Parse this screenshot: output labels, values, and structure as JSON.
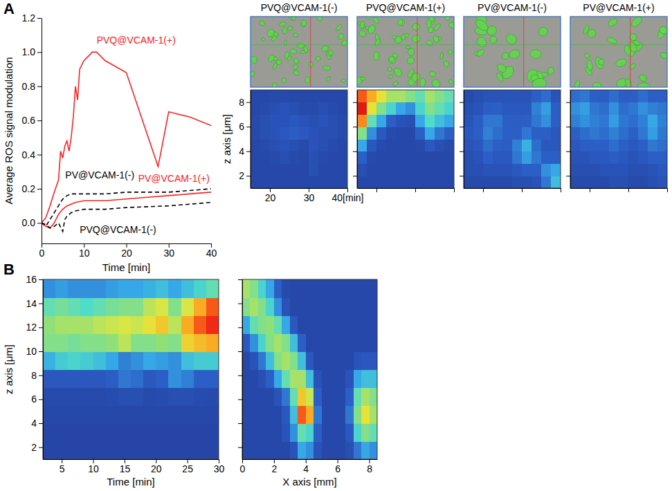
{
  "chart_data": [
    {
      "type": "line",
      "panel": "A",
      "x_label": "Time [min]",
      "y_label": "Average ROS signal modulation",
      "xlim": [
        0,
        40
      ],
      "ylim": [
        -0.12,
        1.2
      ],
      "xticks": [
        0,
        10,
        20,
        30,
        40
      ],
      "yticks": [
        {
          "value": 0,
          "label": "0.0"
        },
        0.2,
        0.4,
        0.6,
        0.8,
        {
          "value": 1,
          "label": "1.0"
        },
        1.2
      ],
      "series": [
        {
          "name": "PVQ@VCAM-1(+)",
          "color": "#ff2020",
          "line_style": "solid",
          "x": [
            0,
            1,
            2,
            3,
            4,
            4.5,
            5,
            5.5,
            6,
            6.5,
            7,
            7.5,
            8,
            8.5,
            9,
            10,
            12,
            13,
            15,
            20,
            27.5,
            30,
            35,
            40
          ],
          "values": [
            0,
            0.03,
            0.1,
            0.18,
            0.25,
            0.42,
            0.38,
            0.45,
            0.48,
            0.42,
            0.5,
            0.62,
            0.8,
            0.72,
            0.9,
            0.95,
            1,
            1,
            0.95,
            0.88,
            0.33,
            0.65,
            0.62,
            0.57
          ]
        },
        {
          "name": "PV@VCAM-1(-)",
          "color": "#000000",
          "line_style": "dashed",
          "x": [
            0,
            1,
            2,
            3,
            4,
            5,
            6,
            7,
            10,
            15,
            20,
            30,
            40
          ],
          "values": [
            0,
            -0.02,
            0.02,
            0.06,
            0.1,
            0.14,
            0.16,
            0.17,
            0.17,
            0.17,
            0.18,
            0.18,
            0.2
          ]
        },
        {
          "name": "PV@VCAM-1(+)",
          "color": "#ff2020",
          "line_style": "solid",
          "x": [
            0,
            1,
            2,
            3,
            4,
            5,
            6,
            8,
            10,
            15,
            20,
            25,
            30,
            35,
            40
          ],
          "values": [
            0,
            -0.02,
            -0.03,
            0,
            0.05,
            0.08,
            0.1,
            0.12,
            0.13,
            0.13,
            0.14,
            0.15,
            0.16,
            0.17,
            0.18
          ]
        },
        {
          "name": "PVQ@VCAM-1(-)",
          "color": "#000000",
          "line_style": "dashed",
          "x": [
            0,
            1,
            2,
            3,
            4,
            5,
            5.5,
            6,
            7,
            8,
            10,
            15,
            20,
            30,
            40
          ],
          "values": [
            0,
            -0.01,
            -0.03,
            -0.02,
            0,
            -0.05,
            0.02,
            0.04,
            0.06,
            0.07,
            0.08,
            0.08,
            0.09,
            0.1,
            0.12
          ]
        }
      ]
    },
    {
      "type": "heatmap",
      "title": "PVQ@VCAM-1(-)",
      "y_label": "z axis [μm]",
      "xlim": [
        15,
        40
      ],
      "ylim": [
        1,
        9
      ],
      "xticks": [
        20,
        30,
        {
          "value": 40,
          "label": "40[min]"
        }
      ],
      "yticks": [
        2,
        4,
        6,
        8
      ],
      "vlim": [
        0,
        1
      ],
      "x": [
        16.25,
        18.75,
        21.25,
        23.75,
        26.25,
        28.75,
        31.25,
        33.75,
        36.25,
        38.75
      ],
      "y": [
        1.5,
        2.5,
        3.5,
        4.5,
        5.5,
        6.5,
        7.5,
        8.5
      ],
      "cells": [
        [
          0.05,
          0.05,
          0.05,
          0.05,
          0.05,
          0.05,
          0.05,
          0.05,
          0.05,
          0.05
        ],
        [
          0.05,
          0.05,
          0.05,
          0.05,
          0.05,
          0.05,
          0.08,
          0.05,
          0.05,
          0.05
        ],
        [
          0.05,
          0.05,
          0.06,
          0.08,
          0.06,
          0.05,
          0.08,
          0.06,
          0.05,
          0.05
        ],
        [
          0.05,
          0.06,
          0.08,
          0.1,
          0.08,
          0.06,
          0.1,
          0.08,
          0.06,
          0.05
        ],
        [
          0.06,
          0.08,
          0.1,
          0.12,
          0.14,
          0.12,
          0.1,
          0.08,
          0.08,
          0.06
        ],
        [
          0.06,
          0.08,
          0.1,
          0.1,
          0.12,
          0.1,
          0.08,
          0.1,
          0.08,
          0.06
        ],
        [
          0.05,
          0.06,
          0.08,
          0.1,
          0.08,
          0.06,
          0.06,
          0.08,
          0.06,
          0.05
        ],
        [
          0.05,
          0.05,
          0.06,
          0.06,
          0.05,
          0.05,
          0.05,
          0.05,
          0.05,
          0.05
        ]
      ]
    },
    {
      "type": "heatmap",
      "title": "PVQ@VCAM-1(+)",
      "tick_labels": false,
      "xlim": [
        15,
        40
      ],
      "ylim": [
        1,
        9
      ],
      "xticks": [
        20,
        30,
        40
      ],
      "yticks": [
        2,
        4,
        6,
        8
      ],
      "vlim": [
        0,
        1
      ],
      "x": [
        16.25,
        18.75,
        21.25,
        23.75,
        26.25,
        28.75,
        31.25,
        33.75,
        36.25,
        38.75
      ],
      "y": [
        1.5,
        2.5,
        3.5,
        4.5,
        5.5,
        6.5,
        7.5,
        8.5
      ],
      "cells": [
        [
          0.05,
          0.05,
          0.05,
          0.05,
          0.05,
          0.05,
          0.05,
          0.05,
          0.05,
          0.05
        ],
        [
          0.08,
          0.05,
          0.05,
          0.05,
          0.05,
          0.05,
          0.05,
          0.05,
          0.05,
          0.05
        ],
        [
          0.15,
          0.06,
          0.05,
          0.05,
          0.05,
          0.05,
          0.05,
          0.05,
          0.05,
          0.05
        ],
        [
          0.3,
          0.12,
          0.06,
          0.05,
          0.05,
          0.05,
          0.06,
          0.12,
          0.08,
          0.06
        ],
        [
          0.5,
          0.25,
          0.12,
          0.06,
          0.05,
          0.05,
          0.15,
          0.3,
          0.2,
          0.15
        ],
        [
          0.8,
          0.45,
          0.3,
          0.15,
          0.1,
          0.08,
          0.3,
          0.42,
          0.35,
          0.3
        ],
        [
          0.95,
          0.65,
          0.5,
          0.4,
          0.3,
          0.25,
          0.4,
          0.5,
          0.45,
          0.4
        ],
        [
          0.85,
          0.75,
          0.65,
          0.55,
          0.55,
          0.5,
          0.45,
          0.55,
          0.5,
          0.45
        ]
      ]
    },
    {
      "type": "heatmap",
      "title": "PV@VCAM-1(-)",
      "tick_labels": false,
      "xlim": [
        15,
        40
      ],
      "ylim": [
        1,
        9
      ],
      "xticks": [
        20,
        30,
        40
      ],
      "yticks": [
        2,
        4,
        6,
        8
      ],
      "vlim": [
        0,
        1
      ],
      "x": [
        16.25,
        18.75,
        21.25,
        23.75,
        26.25,
        28.75,
        31.25,
        33.75,
        36.25,
        38.75
      ],
      "y": [
        1.5,
        2.5,
        3.5,
        4.5,
        5.5,
        6.5,
        7.5,
        8.5
      ],
      "cells": [
        [
          0.06,
          0.06,
          0.06,
          0.06,
          0.06,
          0.08,
          0.08,
          0.1,
          0.2,
          0.35
        ],
        [
          0.08,
          0.08,
          0.1,
          0.1,
          0.1,
          0.12,
          0.15,
          0.15,
          0.25,
          0.3
        ],
        [
          0.08,
          0.1,
          0.15,
          0.12,
          0.12,
          0.2,
          0.28,
          0.2,
          0.15,
          0.15
        ],
        [
          0.1,
          0.12,
          0.18,
          0.15,
          0.14,
          0.22,
          0.32,
          0.18,
          0.12,
          0.12
        ],
        [
          0.12,
          0.15,
          0.22,
          0.18,
          0.15,
          0.15,
          0.2,
          0.15,
          0.15,
          0.12
        ],
        [
          0.1,
          0.14,
          0.2,
          0.2,
          0.15,
          0.14,
          0.15,
          0.2,
          0.25,
          0.15
        ],
        [
          0.08,
          0.1,
          0.14,
          0.15,
          0.12,
          0.12,
          0.12,
          0.22,
          0.28,
          0.15
        ],
        [
          0.06,
          0.08,
          0.1,
          0.1,
          0.1,
          0.1,
          0.1,
          0.15,
          0.18,
          0.1
        ]
      ]
    },
    {
      "type": "heatmap",
      "title": "PV@VCAM-1(+)",
      "tick_labels": false,
      "xlim": [
        15,
        40
      ],
      "ylim": [
        1,
        9
      ],
      "xticks": [
        20,
        30,
        40
      ],
      "yticks": [
        2,
        4,
        6,
        8
      ],
      "vlim": [
        0,
        1
      ],
      "x": [
        16.25,
        18.75,
        21.25,
        23.75,
        26.25,
        28.75,
        31.25,
        33.75,
        36.25,
        38.75
      ],
      "y": [
        1.5,
        2.5,
        3.5,
        4.5,
        5.5,
        6.5,
        7.5,
        8.5
      ],
      "cells": [
        [
          0.06,
          0.06,
          0.06,
          0.06,
          0.08,
          0.08,
          0.06,
          0.06,
          0.08,
          0.1
        ],
        [
          0.08,
          0.08,
          0.08,
          0.1,
          0.1,
          0.1,
          0.08,
          0.08,
          0.1,
          0.12
        ],
        [
          0.1,
          0.1,
          0.12,
          0.12,
          0.14,
          0.12,
          0.1,
          0.12,
          0.15,
          0.15
        ],
        [
          0.12,
          0.14,
          0.15,
          0.15,
          0.18,
          0.15,
          0.12,
          0.15,
          0.2,
          0.18
        ],
        [
          0.15,
          0.18,
          0.2,
          0.18,
          0.22,
          0.18,
          0.15,
          0.2,
          0.28,
          0.2
        ],
        [
          0.22,
          0.25,
          0.22,
          0.2,
          0.28,
          0.2,
          0.18,
          0.22,
          0.3,
          0.22
        ],
        [
          0.25,
          0.28,
          0.2,
          0.18,
          0.25,
          0.18,
          0.2,
          0.25,
          0.22,
          0.2
        ],
        [
          0.18,
          0.2,
          0.15,
          0.14,
          0.18,
          0.14,
          0.15,
          0.18,
          0.15,
          0.15
        ]
      ]
    },
    {
      "type": "heatmap",
      "panel": "B",
      "x_label": "Time [min]",
      "y_label": "z axis [μm]",
      "xlim": [
        2,
        30
      ],
      "ylim": [
        1,
        16
      ],
      "xticks": [
        5,
        10,
        15,
        20,
        25,
        30
      ],
      "yticks": [
        2,
        4,
        6,
        8,
        10,
        12,
        14,
        16
      ],
      "vlim": [
        0,
        1
      ],
      "x": [
        3,
        5,
        7,
        9,
        11,
        13,
        15,
        17,
        19,
        21,
        23,
        25,
        27,
        29
      ],
      "y": [
        1.75,
        3.25,
        4.75,
        6.25,
        7.75,
        9.25,
        10.75,
        12.25,
        13.75,
        15.25
      ],
      "cells": [
        [
          0.04,
          0.04,
          0.04,
          0.04,
          0.04,
          0.04,
          0.04,
          0.04,
          0.04,
          0.04,
          0.04,
          0.04,
          0.04,
          0.04
        ],
        [
          0.04,
          0.04,
          0.04,
          0.04,
          0.04,
          0.04,
          0.04,
          0.04,
          0.04,
          0.04,
          0.04,
          0.04,
          0.04,
          0.04
        ],
        [
          0.05,
          0.05,
          0.05,
          0.05,
          0.05,
          0.05,
          0.05,
          0.05,
          0.05,
          0.05,
          0.05,
          0.05,
          0.05,
          0.05
        ],
        [
          0.06,
          0.06,
          0.06,
          0.06,
          0.06,
          0.07,
          0.08,
          0.08,
          0.06,
          0.07,
          0.08,
          0.08,
          0.07,
          0.06
        ],
        [
          0.12,
          0.12,
          0.12,
          0.12,
          0.12,
          0.14,
          0.2,
          0.18,
          0.12,
          0.15,
          0.25,
          0.22,
          0.15,
          0.15
        ],
        [
          0.32,
          0.38,
          0.4,
          0.38,
          0.35,
          0.3,
          0.22,
          0.25,
          0.3,
          0.28,
          0.25,
          0.35,
          0.38,
          0.38
        ],
        [
          0.5,
          0.5,
          0.48,
          0.5,
          0.5,
          0.52,
          0.58,
          0.5,
          0.5,
          0.52,
          0.5,
          0.68,
          0.72,
          0.75
        ],
        [
          0.52,
          0.55,
          0.55,
          0.55,
          0.58,
          0.6,
          0.62,
          0.6,
          0.65,
          0.7,
          0.58,
          0.75,
          0.85,
          0.9
        ],
        [
          0.45,
          0.48,
          0.45,
          0.42,
          0.45,
          0.48,
          0.5,
          0.5,
          0.58,
          0.62,
          0.5,
          0.62,
          0.75,
          0.85
        ],
        [
          0.25,
          0.28,
          0.25,
          0.25,
          0.25,
          0.28,
          0.3,
          0.3,
          0.32,
          0.35,
          0.3,
          0.35,
          0.4,
          0.45
        ]
      ]
    },
    {
      "type": "heatmap",
      "x_label": "X axis [mm]",
      "tick_labels": "x",
      "xlim": [
        0,
        8.5
      ],
      "ylim": [
        1,
        16
      ],
      "xticks": [
        0,
        2,
        4,
        6,
        8
      ],
      "yticks": [
        2,
        4,
        6,
        8,
        10,
        12,
        14,
        16
      ],
      "vlim": [
        0,
        1
      ],
      "x": [
        0.25,
        0.75,
        1.25,
        1.75,
        2.25,
        2.75,
        3.25,
        3.75,
        4.25,
        4.75,
        5.25,
        5.75,
        6.25,
        6.75,
        7.25,
        7.75,
        8.25
      ],
      "y": [
        1.75,
        3.25,
        4.75,
        6.25,
        7.75,
        9.25,
        10.75,
        12.25,
        13.75,
        15.25
      ],
      "cells": [
        [
          0.05,
          0.05,
          0.05,
          0.05,
          0.05,
          0.05,
          0.1,
          0.3,
          0.25,
          0.1,
          0.05,
          0.05,
          0.05,
          0.08,
          0.2,
          0.3,
          0.25
        ],
        [
          0.05,
          0.05,
          0.05,
          0.05,
          0.05,
          0.1,
          0.25,
          0.45,
          0.4,
          0.15,
          0.05,
          0.05,
          0.05,
          0.12,
          0.4,
          0.5,
          0.45
        ],
        [
          0.05,
          0.05,
          0.05,
          0.05,
          0.05,
          0.12,
          0.35,
          0.85,
          0.75,
          0.2,
          0.05,
          0.05,
          0.05,
          0.2,
          0.5,
          0.65,
          0.55
        ],
        [
          0.05,
          0.05,
          0.05,
          0.05,
          0.1,
          0.2,
          0.45,
          0.7,
          0.6,
          0.15,
          0.05,
          0.05,
          0.05,
          0.15,
          0.45,
          0.55,
          0.5
        ],
        [
          0.05,
          0.05,
          0.08,
          0.15,
          0.3,
          0.45,
          0.55,
          0.55,
          0.35,
          0.1,
          0.05,
          0.05,
          0.05,
          0.1,
          0.3,
          0.35,
          0.35
        ],
        [
          0.05,
          0.1,
          0.2,
          0.35,
          0.5,
          0.55,
          0.5,
          0.35,
          0.12,
          0.05,
          0.05,
          0.05,
          0.05,
          0.05,
          0.1,
          0.12,
          0.12
        ],
        [
          0.12,
          0.25,
          0.4,
          0.5,
          0.55,
          0.5,
          0.35,
          0.15,
          0.05,
          0.05,
          0.05,
          0.05,
          0.05,
          0.05,
          0.05,
          0.05,
          0.05
        ],
        [
          0.3,
          0.45,
          0.5,
          0.52,
          0.45,
          0.3,
          0.12,
          0.05,
          0.05,
          0.05,
          0.05,
          0.05,
          0.05,
          0.05,
          0.05,
          0.05,
          0.05
        ],
        [
          0.5,
          0.55,
          0.5,
          0.4,
          0.25,
          0.1,
          0.05,
          0.05,
          0.05,
          0.05,
          0.05,
          0.05,
          0.05,
          0.05,
          0.05,
          0.05,
          0.05
        ],
        [
          0.55,
          0.5,
          0.4,
          0.3,
          0.15,
          0.06,
          0.05,
          0.05,
          0.05,
          0.05,
          0.05,
          0.05,
          0.05,
          0.05,
          0.05,
          0.05,
          0.05
        ]
      ]
    }
  ]
}
